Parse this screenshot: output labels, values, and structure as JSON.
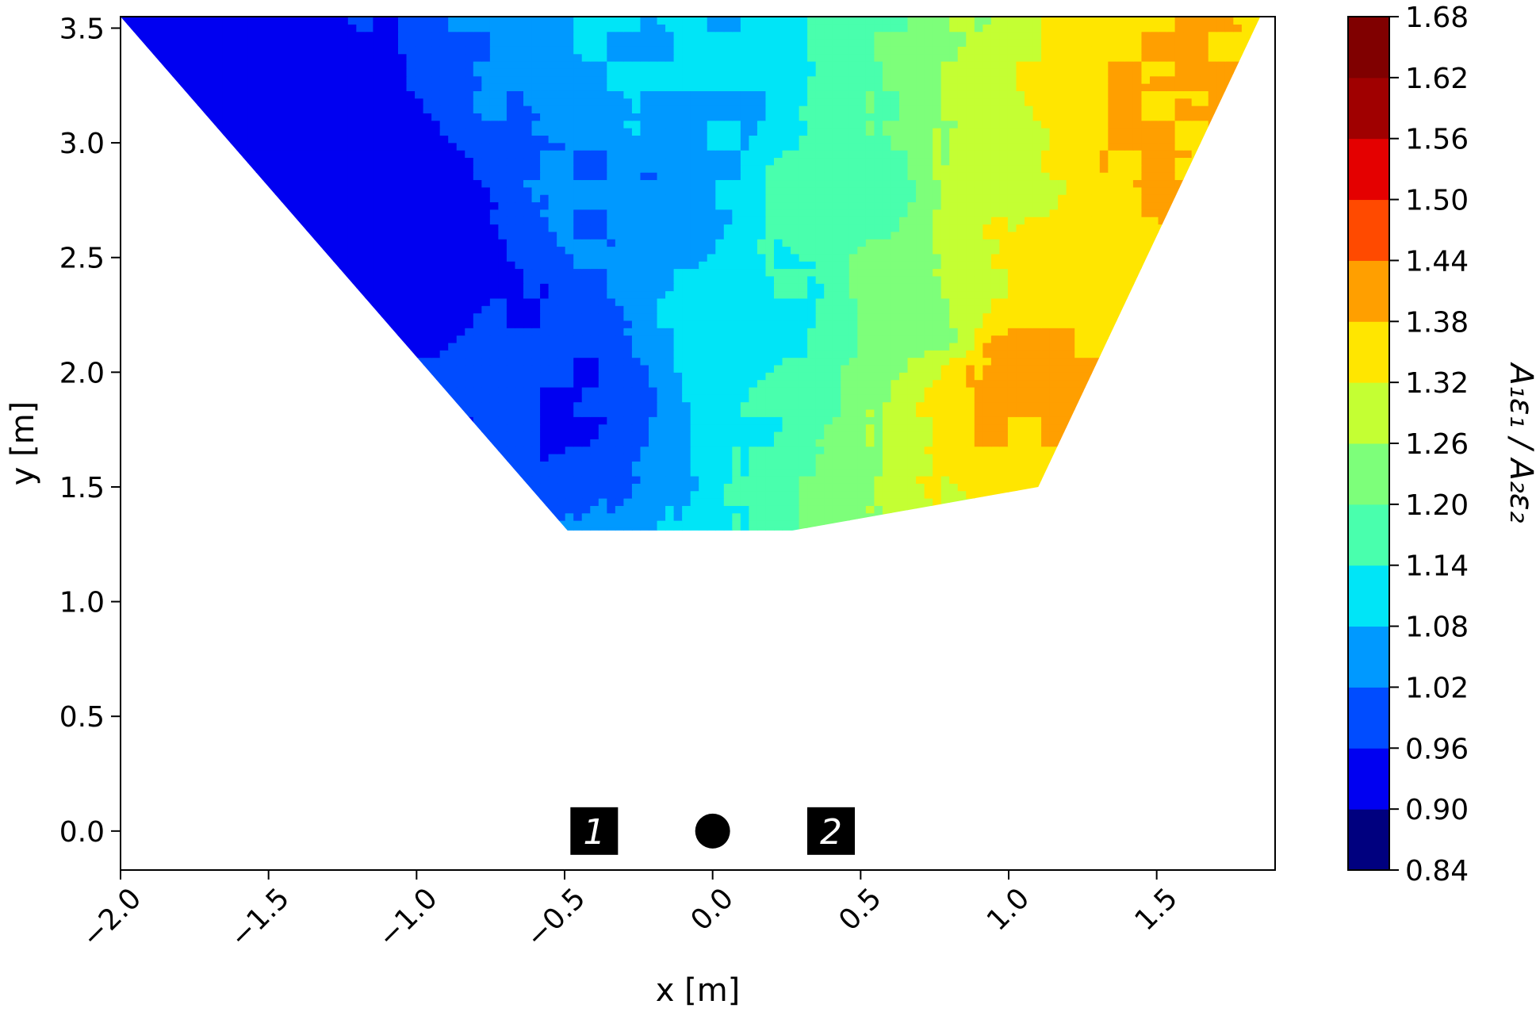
{
  "chart_data": {
    "type": "heatmap",
    "subtype": "filled-contour",
    "title": "",
    "xlabel": "x [m]",
    "ylabel": "y [m]",
    "xlim": [
      -2.0,
      1.9
    ],
    "ylim": [
      -0.17,
      3.55
    ],
    "xticks": [
      -2.0,
      -1.5,
      -1.0,
      -0.5,
      0.0,
      0.5,
      1.0,
      1.5
    ],
    "xtick_labels": [
      "−2.0",
      "−1.5",
      "−1.0",
      "−0.5",
      "0.0",
      "0.5",
      "1.0",
      "1.5"
    ],
    "yticks": [
      0.0,
      0.5,
      1.0,
      1.5,
      2.0,
      2.5,
      3.0,
      3.5
    ],
    "ytick_labels": [
      "0.0",
      "0.5",
      "1.0",
      "1.5",
      "2.0",
      "2.5",
      "3.0",
      "3.5"
    ],
    "grid": false,
    "colormap": "jet",
    "colorbar": {
      "label": "A₁ε₁ / A₂ε₂",
      "levels": [
        0.84,
        0.9,
        0.96,
        1.02,
        1.08,
        1.14,
        1.2,
        1.26,
        1.32,
        1.38,
        1.44,
        1.5,
        1.56,
        1.62,
        1.68
      ],
      "tick_labels": [
        "0.84",
        "0.90",
        "0.96",
        "1.02",
        "1.08",
        "1.14",
        "1.20",
        "1.26",
        "1.32",
        "1.38",
        "1.44",
        "1.50",
        "1.56",
        "1.62",
        "1.68"
      ],
      "colors": [
        "#00007f",
        "#0000f1",
        "#004cff",
        "#0099ff",
        "#00e5f7",
        "#49ffad",
        "#7dff7a",
        "#c4ff33",
        "#ffe600",
        "#ff9f00",
        "#ff4a00",
        "#e40000",
        "#a00000",
        "#800000"
      ]
    },
    "region": {
      "y_range": [
        1.31,
        3.55
      ],
      "left_edge": [
        [
          -2.0,
          3.55
        ],
        [
          -0.49,
          1.31
        ]
      ],
      "right_edge": [
        [
          1.85,
          3.55
        ],
        [
          1.1,
          1.5
        ],
        [
          0.27,
          1.31
        ]
      ]
    },
    "field_trend": "ratio increases from left (about 0.90) to right (about 1.40)",
    "field_samples": [
      {
        "x": -1.6,
        "y": 3.1,
        "v": 0.93
      },
      {
        "x": -1.0,
        "y": 2.5,
        "v": 0.92
      },
      {
        "x": -0.6,
        "y": 2.0,
        "v": 0.96
      },
      {
        "x": -0.3,
        "y": 2.8,
        "v": 1.02
      },
      {
        "x": -0.1,
        "y": 3.1,
        "v": 1.08
      },
      {
        "x": 0.2,
        "y": 2.2,
        "v": 1.12
      },
      {
        "x": 0.5,
        "y": 2.8,
        "v": 1.18
      },
      {
        "x": 0.7,
        "y": 2.2,
        "v": 1.24
      },
      {
        "x": 0.95,
        "y": 2.8,
        "v": 1.3
      },
      {
        "x": 1.2,
        "y": 2.5,
        "v": 1.36
      },
      {
        "x": 1.5,
        "y": 3.0,
        "v": 1.39
      },
      {
        "x": 1.0,
        "y": 2.0,
        "v": 1.4
      }
    ],
    "markers": [
      {
        "type": "square",
        "label": "1",
        "x": -0.4,
        "y": 0.0
      },
      {
        "type": "circle",
        "label": "",
        "x": 0.0,
        "y": 0.0
      },
      {
        "type": "square",
        "label": "2",
        "x": 0.4,
        "y": 0.0
      }
    ]
  }
}
